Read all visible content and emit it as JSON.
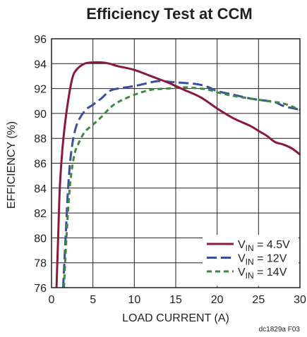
{
  "chart_data": {
    "type": "line",
    "title": "Efficiency Test at CCM",
    "xlabel": "LOAD CURRENT (A)",
    "ylabel": "EFFICIENCY (%)",
    "xlim": [
      0,
      30
    ],
    "ylim": [
      76,
      96
    ],
    "x_ticks": [
      0,
      5,
      10,
      15,
      20,
      25,
      30
    ],
    "y_ticks": [
      76,
      78,
      80,
      82,
      84,
      86,
      88,
      90,
      92,
      94,
      96
    ],
    "grid": true,
    "legend_position": "bottom-right",
    "series": [
      {
        "name_main": "V",
        "name_sub": "IN",
        "name_rest": " = 4.5V",
        "color": "#8b1a3a",
        "dash": "solid",
        "points": [
          [
            0.6,
            76
          ],
          [
            0.8,
            80
          ],
          [
            1.0,
            84
          ],
          [
            1.3,
            87
          ],
          [
            1.6,
            89
          ],
          [
            2.0,
            91
          ],
          [
            2.5,
            92.8
          ],
          [
            3.0,
            93.5
          ],
          [
            4.0,
            94.0
          ],
          [
            5.0,
            94.1
          ],
          [
            6.0,
            94.1
          ],
          [
            7.0,
            94.0
          ],
          [
            8.0,
            93.8
          ],
          [
            10.0,
            93.5
          ],
          [
            12.0,
            93.0
          ],
          [
            14.0,
            92.5
          ],
          [
            15.0,
            92.2
          ],
          [
            16.0,
            91.9
          ],
          [
            18.0,
            91.3
          ],
          [
            20.0,
            90.4
          ],
          [
            22.0,
            89.6
          ],
          [
            24.0,
            89.0
          ],
          [
            25.0,
            88.6
          ],
          [
            26.0,
            88.2
          ],
          [
            27.0,
            87.7
          ],
          [
            28.0,
            87.5
          ],
          [
            29.0,
            87.2
          ],
          [
            30.0,
            86.7
          ]
        ]
      },
      {
        "name_main": "V",
        "name_sub": "IN",
        "name_rest": " = 12V",
        "color": "#3b4fa0",
        "dash": "long",
        "points": [
          [
            1.4,
            76
          ],
          [
            1.7,
            80
          ],
          [
            2.0,
            84
          ],
          [
            2.4,
            87
          ],
          [
            3.0,
            89
          ],
          [
            4.0,
            90.2
          ],
          [
            5.0,
            90.7
          ],
          [
            6.0,
            91.2
          ],
          [
            7.0,
            91.8
          ],
          [
            8.0,
            92.0
          ],
          [
            10.0,
            92.2
          ],
          [
            12.0,
            92.5
          ],
          [
            13.0,
            92.6
          ],
          [
            15.0,
            92.5
          ],
          [
            17.0,
            92.4
          ],
          [
            18.0,
            92.3
          ],
          [
            19.0,
            92.1
          ],
          [
            20.0,
            91.8
          ],
          [
            22.0,
            91.5
          ],
          [
            24.0,
            91.2
          ],
          [
            25.0,
            91.1
          ],
          [
            27.0,
            90.9
          ],
          [
            28.0,
            90.6
          ],
          [
            30.0,
            90.3
          ]
        ]
      },
      {
        "name_main": "V",
        "name_sub": "IN",
        "name_rest": " = 14V",
        "color": "#3a8a3f",
        "dash": "short",
        "points": [
          [
            1.5,
            76
          ],
          [
            1.8,
            80
          ],
          [
            2.2,
            84
          ],
          [
            2.7,
            86.5
          ],
          [
            3.2,
            87.5
          ],
          [
            4.0,
            88.5
          ],
          [
            5.0,
            89.1
          ],
          [
            6.0,
            89.7
          ],
          [
            7.0,
            90.4
          ],
          [
            8.0,
            90.9
          ],
          [
            10.0,
            91.5
          ],
          [
            12.0,
            91.9
          ],
          [
            14.0,
            92.0
          ],
          [
            16.0,
            92.1
          ],
          [
            18.0,
            92.0
          ],
          [
            19.0,
            91.9
          ],
          [
            20.0,
            91.7
          ],
          [
            22.0,
            91.4
          ],
          [
            24.0,
            91.2
          ],
          [
            26.0,
            91.0
          ],
          [
            28.0,
            90.8
          ],
          [
            30.0,
            90.3
          ]
        ]
      }
    ],
    "footnote": "dc1829a F03"
  }
}
